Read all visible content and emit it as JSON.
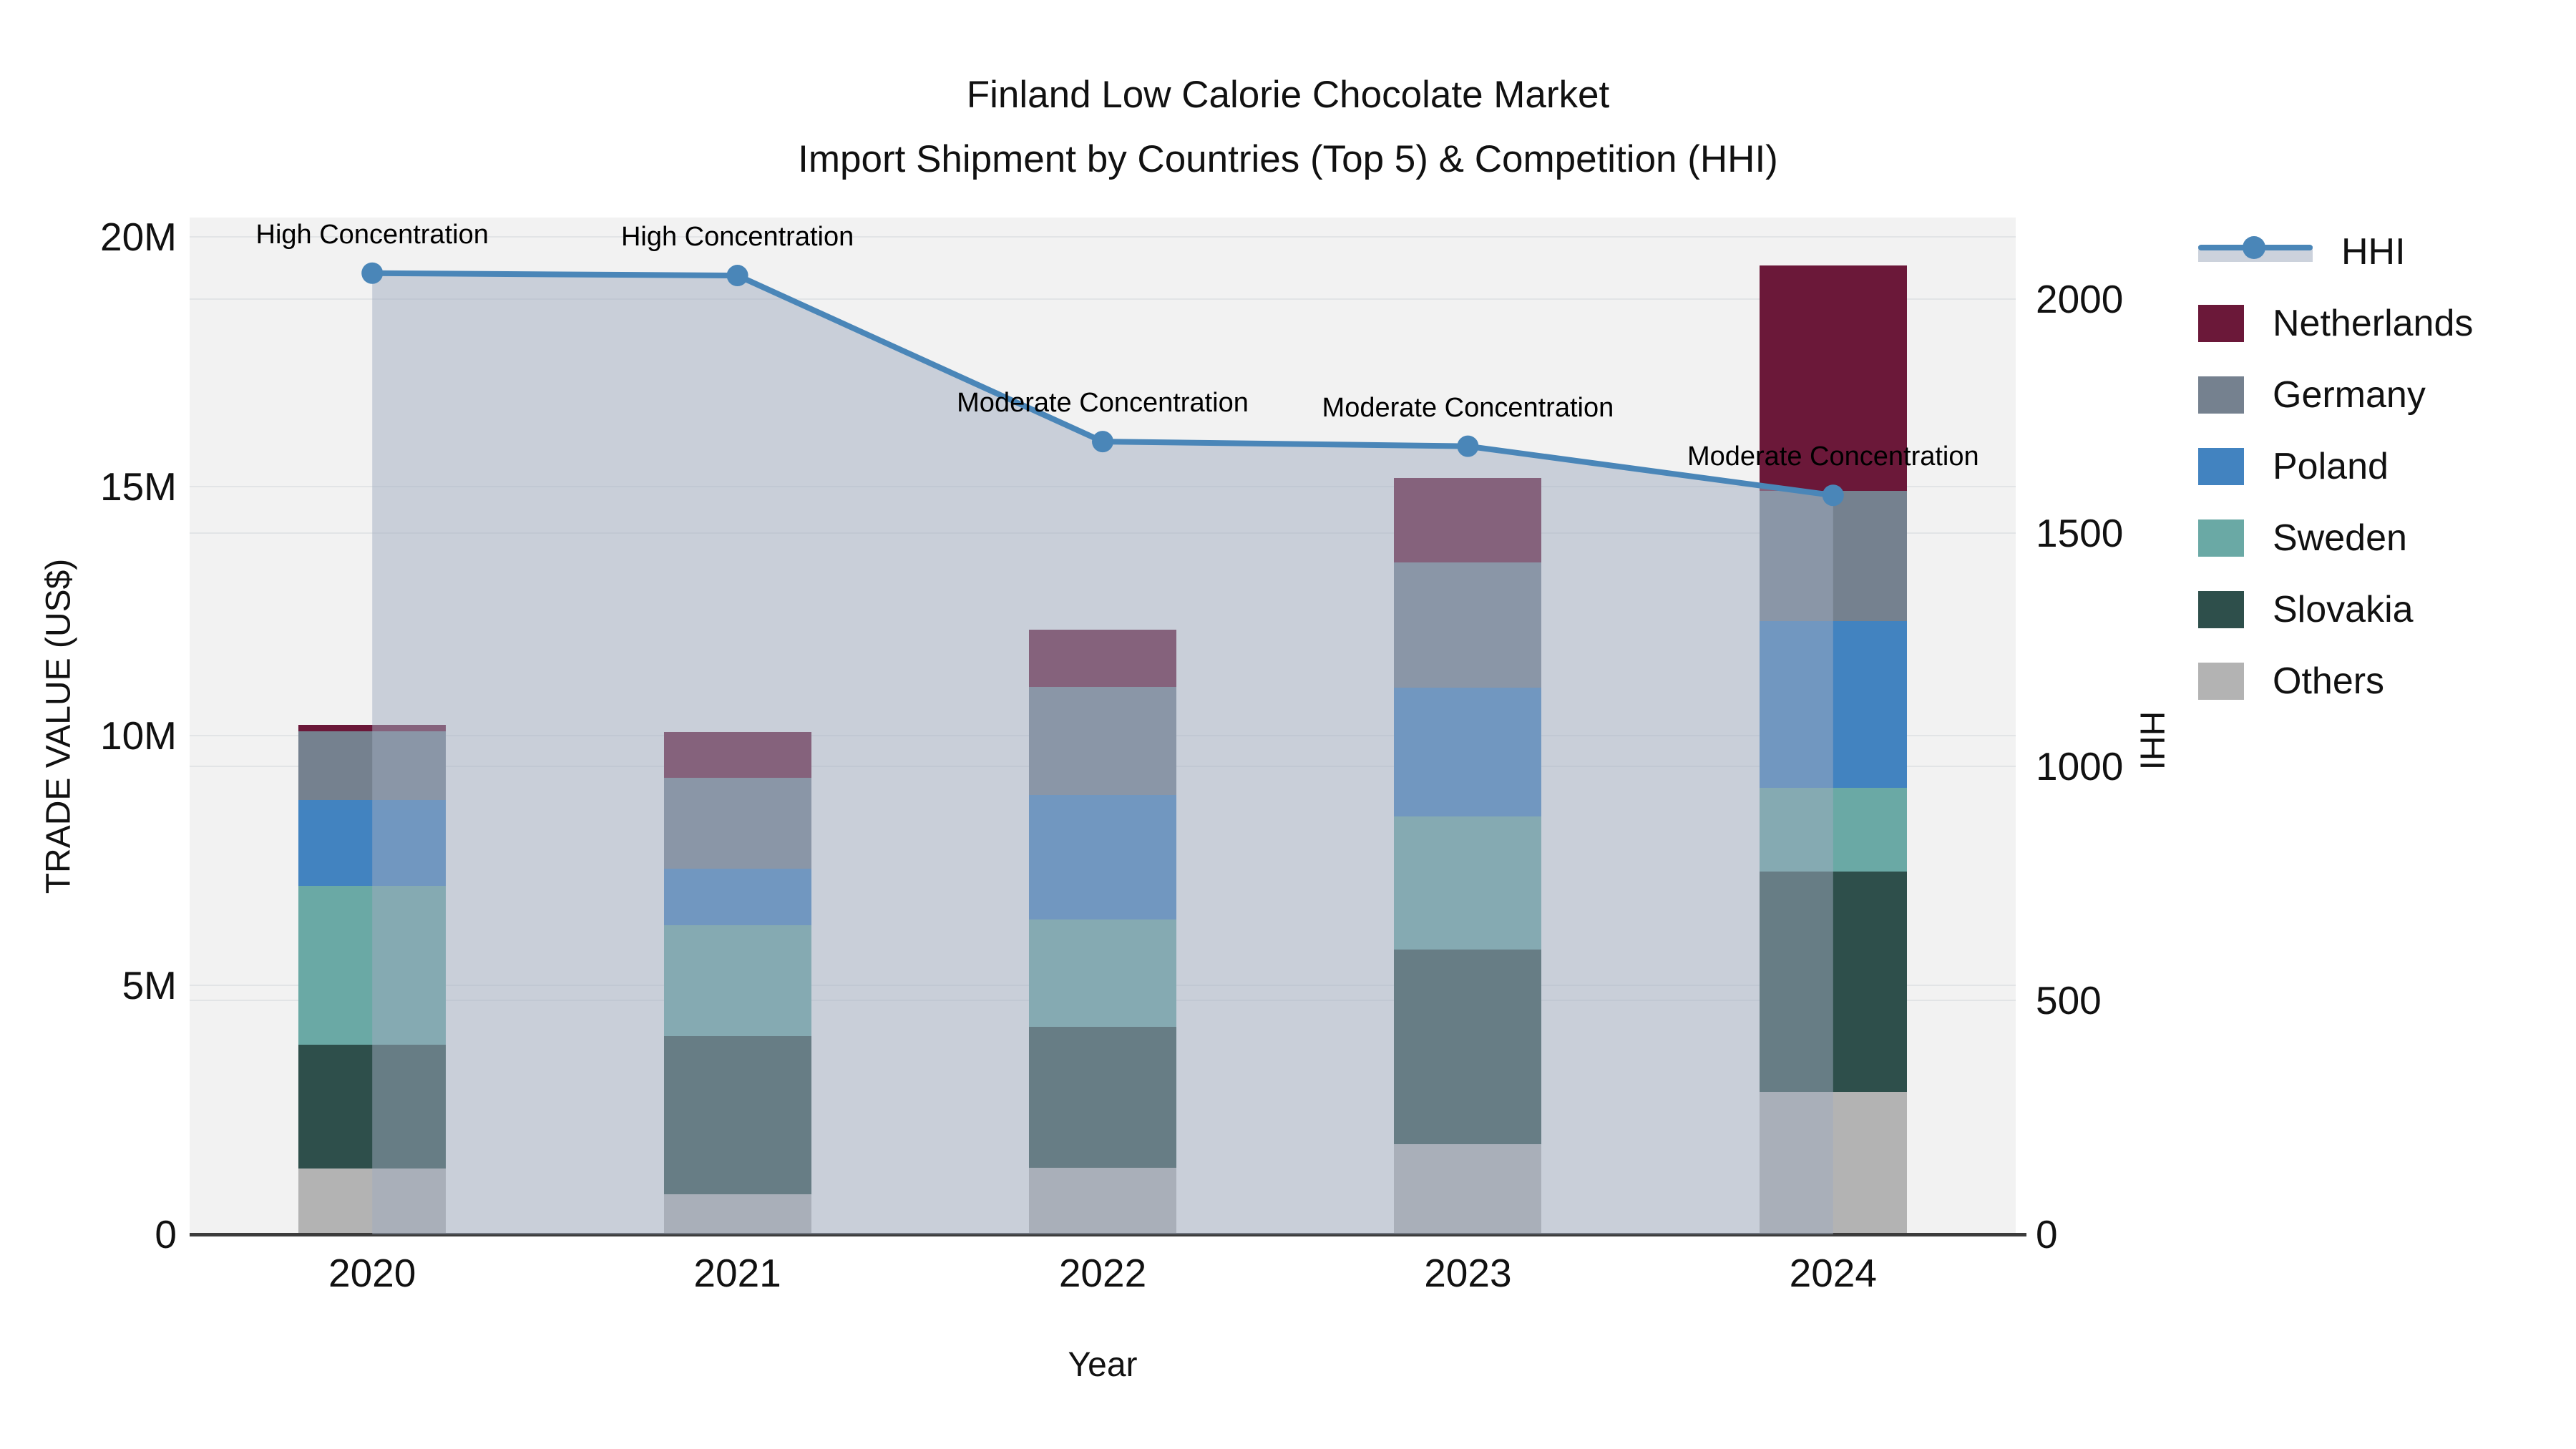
{
  "title": {
    "line1": "Finland Low Calorie Chocolate Market",
    "line2": "Import Shipment by Countries (Top 5) & Competition (HHI)"
  },
  "axes": {
    "left": {
      "label": "TRADE VALUE (US$)",
      "tick_labels": [
        "0",
        "5M",
        "10M",
        "15M",
        "20M"
      ],
      "tick_values": [
        0,
        5,
        10,
        15,
        20
      ]
    },
    "right": {
      "label": "HHI",
      "tick_labels": [
        "0",
        "500",
        "1000",
        "1500",
        "2000"
      ],
      "tick_values": [
        0,
        500,
        1000,
        1500,
        2000
      ]
    },
    "x": {
      "label": "Year"
    }
  },
  "legend": [
    {
      "label": "HHI",
      "type": "line",
      "color": "#4a86b8"
    },
    {
      "label": "Netherlands",
      "type": "swatch",
      "color": "#6b1839"
    },
    {
      "label": "Germany",
      "type": "swatch",
      "color": "#75818f"
    },
    {
      "label": "Poland",
      "type": "swatch",
      "color": "#4283c0"
    },
    {
      "label": "Sweden",
      "type": "swatch",
      "color": "#6aa9a5"
    },
    {
      "label": "Slovakia",
      "type": "swatch",
      "color": "#2e4f4b"
    },
    {
      "label": "Others",
      "type": "swatch",
      "color": "#b3b3b3"
    }
  ],
  "chart_data": {
    "type": "bar",
    "stacked": true,
    "unit": "million US$",
    "categories": [
      "2020",
      "2021",
      "2022",
      "2023",
      "2024"
    ],
    "series": [
      {
        "name": "Others",
        "color": "#b3b3b3",
        "values": [
          1.32,
          0.8,
          1.33,
          1.81,
          2.85
        ]
      },
      {
        "name": "Slovakia",
        "color": "#2e4f4b",
        "values": [
          2.48,
          3.17,
          2.83,
          3.9,
          4.42
        ]
      },
      {
        "name": "Sweden",
        "color": "#6aa9a5",
        "values": [
          3.19,
          2.23,
          2.15,
          2.67,
          1.68
        ]
      },
      {
        "name": "Poland",
        "color": "#4283c0",
        "values": [
          1.72,
          1.13,
          2.5,
          2.58,
          3.35
        ]
      },
      {
        "name": "Germany",
        "color": "#75818f",
        "values": [
          1.38,
          1.82,
          2.17,
          2.51,
          2.61
        ]
      },
      {
        "name": "Netherlands",
        "color": "#6b1839",
        "values": [
          0.13,
          0.93,
          1.15,
          1.69,
          4.52
        ]
      }
    ],
    "line_series": {
      "name": "HHI",
      "axis": "right",
      "color": "#4a86b8",
      "area_fill": "rgba(160,171,192,0.50)",
      "values": [
        2055,
        2050,
        1695,
        1685,
        1580
      ]
    },
    "title": "Finland Low Calorie Chocolate Market — Import Shipment by Countries (Top 5) & Competition (HHI)",
    "xlabel": "Year",
    "ylabel": "TRADE VALUE (US$)",
    "y2label": "HHI",
    "ylim": [
      0,
      20.39
    ],
    "y2lim": [
      0,
      2174
    ],
    "grid": true,
    "legend_position": "right",
    "annotations": [
      {
        "category": "2020",
        "text": "High Concentration"
      },
      {
        "category": "2021",
        "text": "High Concentration"
      },
      {
        "category": "2022",
        "text": "Moderate Concentration"
      },
      {
        "category": "2023",
        "text": "Moderate Concentration"
      },
      {
        "category": "2024",
        "text": "Moderate Concentration"
      }
    ]
  }
}
